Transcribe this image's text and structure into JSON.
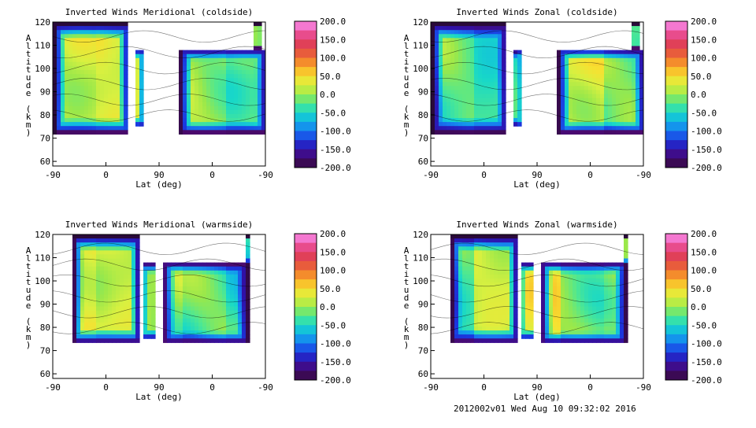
{
  "chart_data": [
    {
      "type": "contour",
      "title": "Inverted Winds Meridional (coldside)",
      "xlabel": "Lat (deg)",
      "ylabel": "Altitude (km)",
      "x_ticks": [
        "-90",
        "0",
        "90",
        "0",
        "-90"
      ],
      "ylim": [
        58,
        120
      ],
      "y_ticks": [
        60,
        70,
        80,
        90,
        100,
        110,
        120
      ],
      "colorbar": {
        "range": [
          -200,
          200
        ],
        "ticks": [
          "200.0",
          "150.0",
          "100.0",
          "50.0",
          "0.0",
          "-50.0",
          "-100.0",
          "-150.0",
          "-200.0"
        ]
      },
      "dominant_values_ms": [
        20,
        30,
        10,
        0,
        -20
      ]
    },
    {
      "type": "contour",
      "title": "Inverted Winds Zonal (coldside)",
      "xlabel": "Lat (deg)",
      "ylabel": "Altitude (km)",
      "x_ticks": [
        "-90",
        "0",
        "90",
        "0",
        "-90"
      ],
      "ylim": [
        58,
        120
      ],
      "y_ticks": [
        60,
        70,
        80,
        90,
        100,
        110,
        120
      ],
      "colorbar": {
        "range": [
          -200,
          200
        ],
        "ticks": [
          "200.0",
          "150.0",
          "100.0",
          "50.0",
          "0.0",
          "-50.0",
          "-100.0",
          "-150.0",
          "-200.0"
        ]
      },
      "dominant_values_ms": [
        -20,
        -40,
        10,
        30,
        -10
      ]
    },
    {
      "type": "contour",
      "title": "Inverted Winds Meridional (warmside)",
      "xlabel": "Lat (deg)",
      "ylabel": "Altitude (km)",
      "x_ticks": [
        "-90",
        "0",
        "90",
        "0",
        "-90"
      ],
      "ylim": [
        58,
        120
      ],
      "y_ticks": [
        60,
        70,
        80,
        90,
        100,
        110,
        120
      ],
      "colorbar": {
        "range": [
          -200,
          200
        ],
        "ticks": [
          "200.0",
          "150.0",
          "100.0",
          "50.0",
          "0.0",
          "-50.0",
          "-100.0",
          "-150.0",
          "-200.0"
        ]
      },
      "dominant_values_ms": [
        40,
        20,
        0,
        -20,
        -40
      ]
    },
    {
      "type": "contour",
      "title": "Inverted Winds Zonal (warmside)",
      "xlabel": "Lat (deg)",
      "ylabel": "Altitude (km)",
      "x_ticks": [
        "-90",
        "0",
        "90",
        "0",
        "-90"
      ],
      "ylim": [
        58,
        120
      ],
      "y_ticks": [
        60,
        70,
        80,
        90,
        100,
        110,
        120
      ],
      "colorbar": {
        "range": [
          -200,
          200
        ],
        "ticks": [
          "200.0",
          "150.0",
          "100.0",
          "50.0",
          "0.0",
          "-50.0",
          "-100.0",
          "-150.0",
          "-200.0"
        ]
      },
      "dominant_values_ms": [
        -30,
        20,
        40,
        -10,
        0
      ]
    }
  ],
  "footer": "2012002v01 Wed Aug 10 09:32:02 2016"
}
